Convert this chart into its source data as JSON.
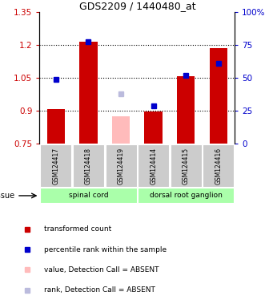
{
  "title": "GDS2209 / 1440480_at",
  "samples": [
    "GSM124417",
    "GSM124418",
    "GSM124419",
    "GSM124414",
    "GSM124415",
    "GSM124416"
  ],
  "bar_values": [
    0.908,
    1.215,
    0.875,
    0.895,
    1.058,
    1.185
  ],
  "bar_absent": [
    false,
    false,
    true,
    false,
    false,
    false
  ],
  "rank_values": [
    1.044,
    1.215,
    0.975,
    0.922,
    1.062,
    1.115
  ],
  "rank_absent": [
    false,
    false,
    true,
    false,
    false,
    false
  ],
  "ylim_left": [
    0.75,
    1.35
  ],
  "ylim_right": [
    0,
    100
  ],
  "yticks_left": [
    0.75,
    0.9,
    1.05,
    1.2,
    1.35
  ],
  "ytick_labels_left": [
    "0.75",
    "0.9",
    "1.05",
    "1.2",
    "1.35"
  ],
  "yticks_right": [
    0,
    25,
    50,
    75,
    100
  ],
  "ytick_labels_right": [
    "0",
    "25",
    "50",
    "75",
    "100%"
  ],
  "bar_color": "#cc0000",
  "bar_absent_color": "#ffbbbb",
  "rank_color": "#0000cc",
  "rank_absent_color": "#bbbbdd",
  "bar_base": 0.75,
  "tissue_groups": [
    {
      "label": "spinal cord",
      "start": 0,
      "end": 2
    },
    {
      "label": "dorsal root ganglion",
      "start": 3,
      "end": 5
    }
  ],
  "tissue_color": "#aaffaa",
  "tissue_label": "tissue",
  "legend_items": [
    {
      "label": "transformed count",
      "color": "#cc0000"
    },
    {
      "label": "percentile rank within the sample",
      "color": "#0000cc"
    },
    {
      "label": "value, Detection Call = ABSENT",
      "color": "#ffbbbb"
    },
    {
      "label": "rank, Detection Call = ABSENT",
      "color": "#bbbbdd"
    }
  ],
  "bar_width": 0.55,
  "rank_marker_size": 5,
  "left_axis_color": "#cc0000",
  "right_axis_color": "#0000cc",
  "sample_box_color": "#cccccc",
  "fig_width": 3.41,
  "fig_height": 3.84,
  "dpi": 100
}
